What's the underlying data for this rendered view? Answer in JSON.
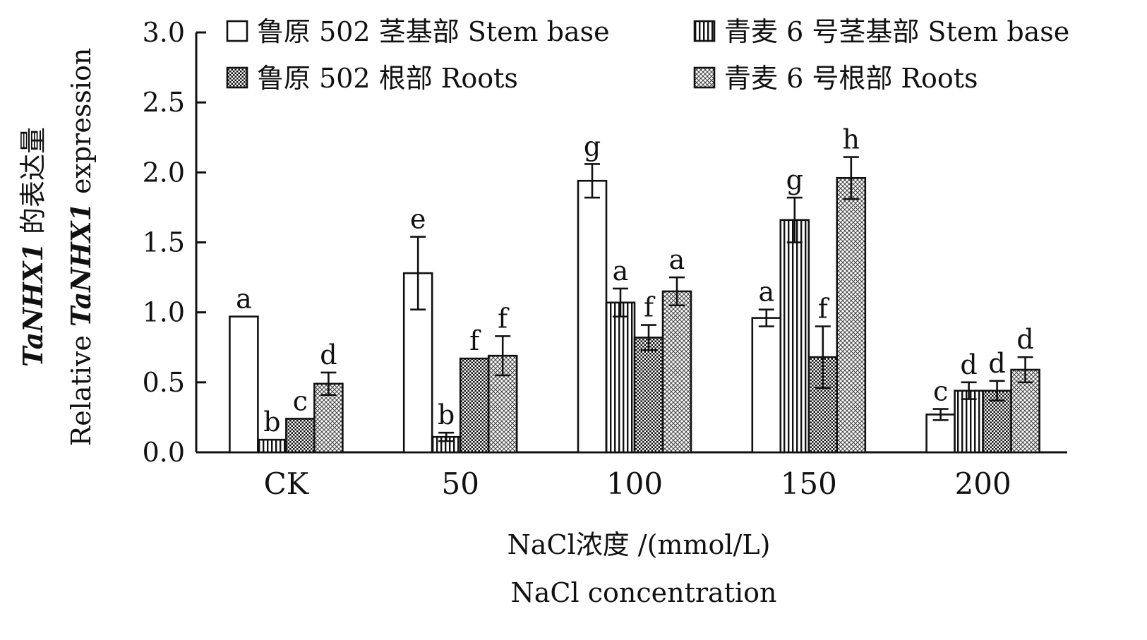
{
  "chart_data": {
    "type": "bar",
    "categories": [
      "CK",
      "50",
      "100",
      "150",
      "200"
    ],
    "ylim": [
      0,
      3.0
    ],
    "ylabel_cn_part1": "TaNHX1",
    "ylabel_cn_part2": " 的表达量",
    "ylabel_en_part1": "Relative ",
    "ylabel_en_part2": "TaNHX1",
    "ylabel_en_part3": " expression",
    "xlabel_cn": "NaCl浓度 /(mmol/L)",
    "xlabel_en": "NaCl concentration",
    "legend_position": "top",
    "grid": false,
    "yticks": [
      "0.0",
      "0.5",
      "1.0",
      "1.5",
      "2.0",
      "2.5",
      "3.0"
    ],
    "series": [
      {
        "name": "鲁原 502 茎基部  Stem base",
        "pattern": "white",
        "values": [
          0.97,
          1.28,
          1.94,
          0.96,
          0.27
        ],
        "errors": [
          0.0,
          0.26,
          0.12,
          0.06,
          0.04
        ],
        "letters": [
          "a",
          "e",
          "g",
          "a",
          "c"
        ]
      },
      {
        "name": "青麦 6 号茎基部  Stem base",
        "pattern": "vstripe",
        "values": [
          0.09,
          0.11,
          1.07,
          1.66,
          0.44
        ],
        "errors": [
          0.0,
          0.03,
          0.1,
          0.16,
          0.06
        ],
        "letters": [
          "b",
          "b",
          "a",
          "g",
          "d"
        ]
      },
      {
        "name": "鲁原 502 根部  Roots",
        "pattern": "dots",
        "values": [
          0.24,
          0.67,
          0.82,
          0.68,
          0.44
        ],
        "errors": [
          0.0,
          0.0,
          0.09,
          0.22,
          0.07
        ],
        "letters": [
          "c",
          "f",
          "f",
          "f",
          "d"
        ]
      },
      {
        "name": "青麦 6 号根部  Roots",
        "pattern": "cross",
        "values": [
          0.49,
          0.69,
          1.15,
          1.96,
          0.59
        ],
        "errors": [
          0.08,
          0.14,
          0.1,
          0.15,
          0.09
        ],
        "letters": [
          "d",
          "f",
          "a",
          "h",
          "d"
        ]
      }
    ]
  }
}
